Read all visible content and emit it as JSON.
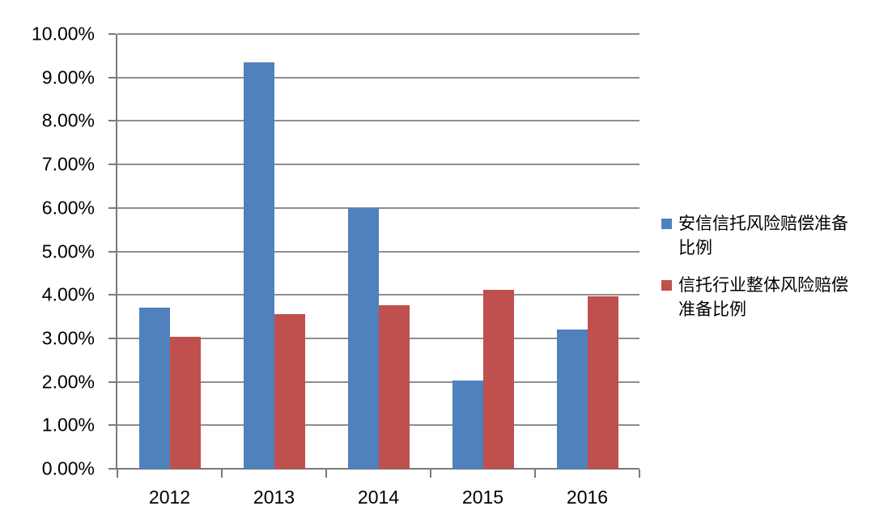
{
  "chart_data": {
    "type": "bar",
    "title": "",
    "categories": [
      "2012",
      "2013",
      "2014",
      "2015",
      "2016"
    ],
    "series": [
      {
        "name": "安信信托风险赔偿准备比例",
        "color": "#4F81BD",
        "values": [
          3.7,
          9.35,
          6.0,
          2.03,
          3.2
        ]
      },
      {
        "name": "信托行业整体风险赔偿准备比例",
        "color": "#C0504D",
        "values": [
          3.03,
          3.55,
          3.77,
          4.11,
          3.96
        ]
      }
    ],
    "x_axis": {
      "label": "",
      "tick_labels": [
        "2012",
        "2013",
        "2014",
        "2015",
        "2016"
      ]
    },
    "y_axis": {
      "label": "",
      "min": 0,
      "max": 10,
      "step": 1,
      "unit": "%",
      "tick_labels": [
        "0.00%",
        "1.00%",
        "2.00%",
        "3.00%",
        "4.00%",
        "5.00%",
        "6.00%",
        "7.00%",
        "8.00%",
        "9.00%",
        "10.00%"
      ]
    },
    "legend": {
      "position": "right",
      "entries": [
        "安信信托风险赔偿准备比例",
        "信托行业整体风险赔偿准备比例"
      ]
    },
    "grid": true,
    "colors": {
      "gridline": "#8E8E8E",
      "axis": "#7A7A7A",
      "text": "#000000",
      "background": "#FFFFFF"
    }
  }
}
